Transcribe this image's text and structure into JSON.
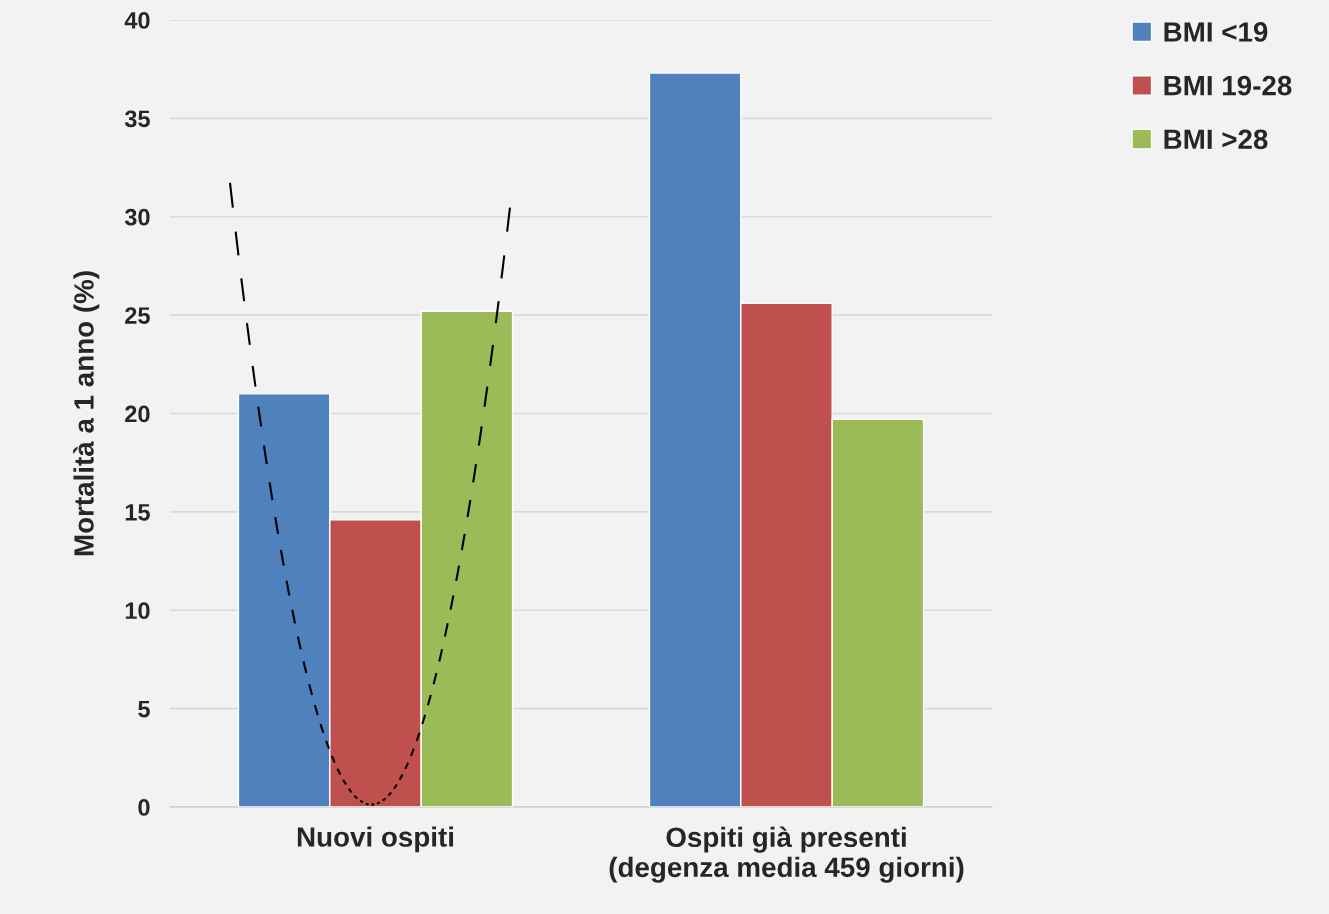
{
  "chart_data": {
    "type": "bar",
    "ylabel": "Mortalità a 1 anno (%)",
    "categories": [
      "Nuovi ospiti",
      "Ospiti già presenti\n(degenza media 459 giorni)"
    ],
    "series": [
      {
        "name": "BMI <19",
        "color": "#4f81bd",
        "values": [
          21.0,
          37.3
        ]
      },
      {
        "name": "BMI 19-28",
        "color": "#c0504d",
        "values": [
          14.6,
          25.6
        ]
      },
      {
        "name": "BMI >28",
        "color": "#9bbb59",
        "values": [
          25.2,
          19.7
        ]
      }
    ],
    "ylim": [
      0,
      40
    ],
    "yticks": [
      0,
      5,
      10,
      15,
      20,
      25,
      30,
      35,
      40
    ],
    "grid": "y",
    "legend": "top right"
  }
}
